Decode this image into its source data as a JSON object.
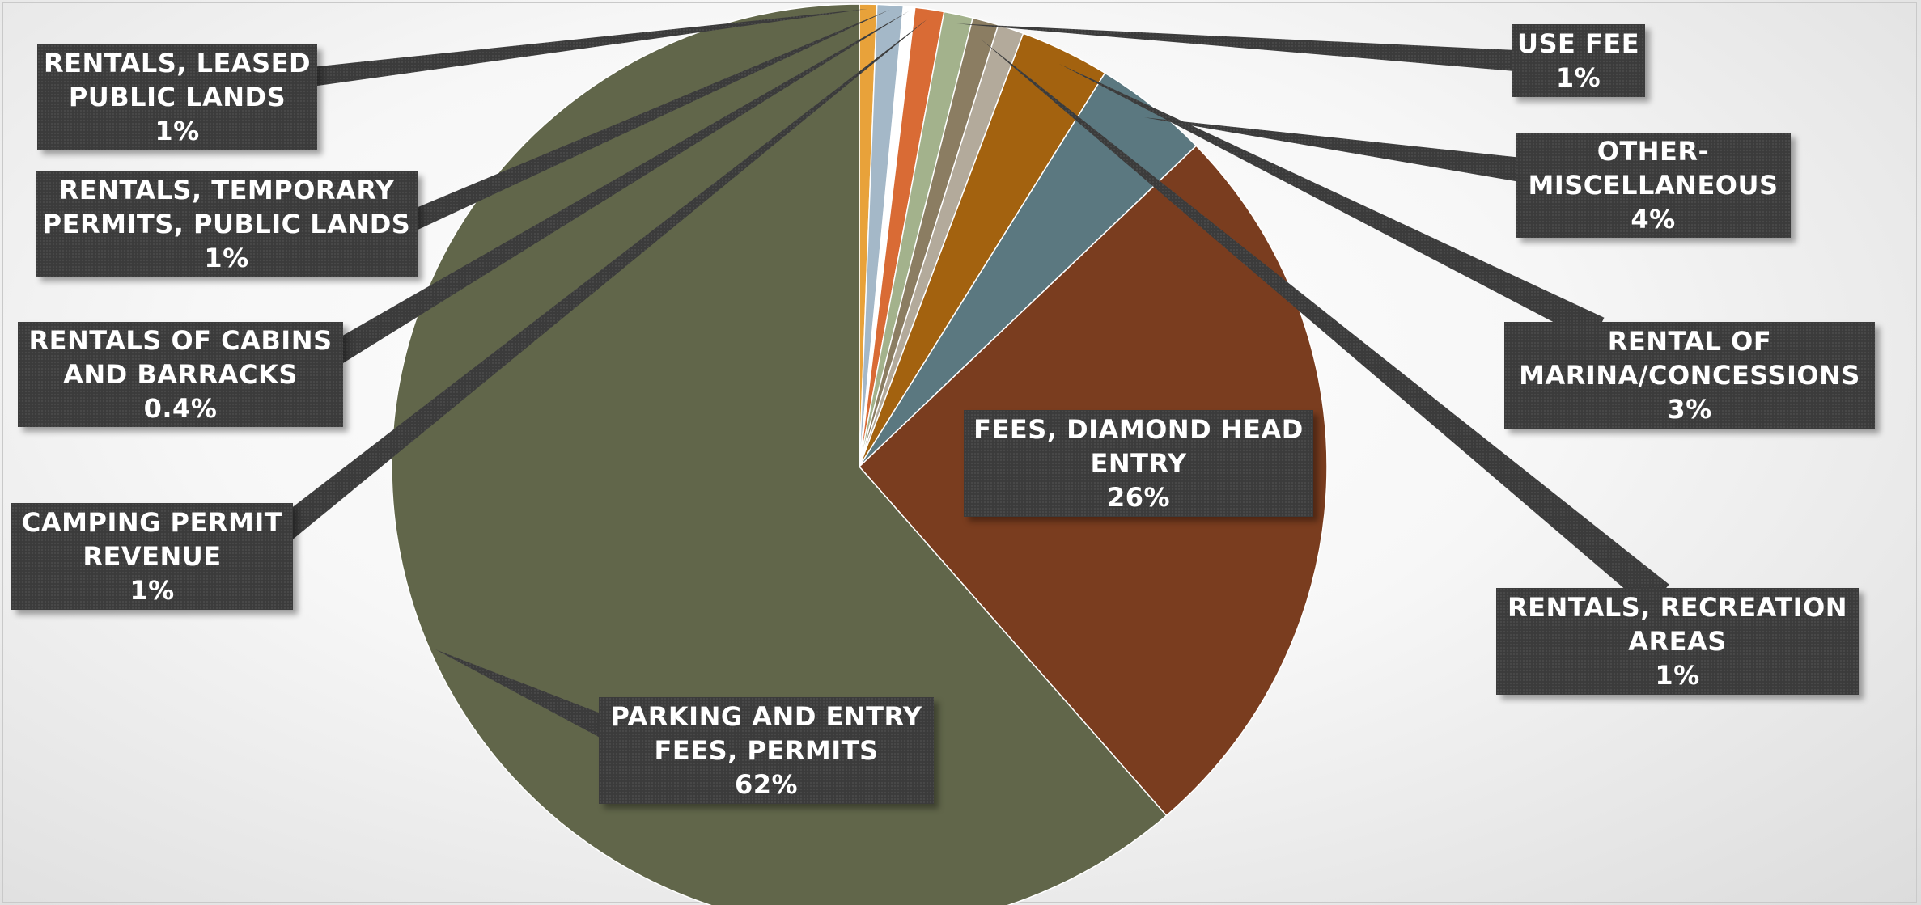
{
  "chart_data": {
    "type": "pie",
    "title": "",
    "start_angle_deg": 0,
    "direction": "clockwise",
    "slices": [
      {
        "label_lines": [
          "RENTALS, LEASED",
          "PUBLIC LANDS"
        ],
        "percent_label": "1%",
        "value": 0.6,
        "color": "#e8a23a"
      },
      {
        "label_lines": [
          "RENTALS, TEMPORARY",
          "PERMITS, PUBLIC LANDS"
        ],
        "percent_label": "1%",
        "value": 0.9,
        "color": "#a4b8c8"
      },
      {
        "label_lines": [
          "RENTALS OF CABINS",
          "AND BARRACKS"
        ],
        "percent_label": "0.4%",
        "value": 0.4,
        "color": "#ffffff"
      },
      {
        "label_lines": [
          "CAMPING PERMIT",
          "REVENUE"
        ],
        "percent_label": "1%",
        "value": 1.0,
        "color": "#d96b35"
      },
      {
        "label_lines": [
          "USE FEE"
        ],
        "percent_label": "1%",
        "value": 1.0,
        "color": "#a3b28c"
      },
      {
        "label_lines": [
          "RENTALS, RECREATION",
          "AREAS"
        ],
        "percent_label": "1%",
        "value": 0.9,
        "color": "#8b7d62"
      },
      {
        "label_lines": [
          "",
          ""
        ],
        "percent_label": "",
        "value": 0.9,
        "color": "#b3aa9b"
      },
      {
        "label_lines": [
          "RENTAL OF",
          "MARINA/CONCESSIONS"
        ],
        "percent_label": "3%",
        "value": 3.1,
        "color": "#a3620f"
      },
      {
        "label_lines": [
          "OTHER-",
          "MISCELLANEOUS"
        ],
        "percent_label": "4%",
        "value": 4.0,
        "color": "#5b7880"
      },
      {
        "label_lines": [
          "FEES, DIAMOND HEAD",
          "ENTRY"
        ],
        "percent_label": "26%",
        "value": 25.8,
        "color": "#7a3d1f"
      },
      {
        "label_lines": [
          "PARKING AND ENTRY",
          "FEES, PERMITS"
        ],
        "percent_label": "62%",
        "value": 61.4,
        "color": "#61664a"
      }
    ]
  }
}
